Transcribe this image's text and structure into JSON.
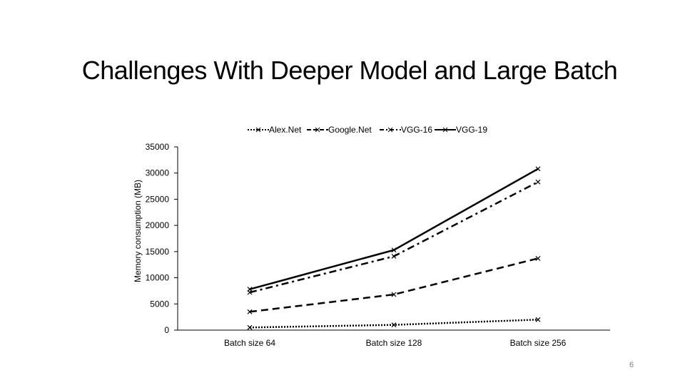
{
  "slide": {
    "title": "Challenges With Deeper Model and Large Batch",
    "page_number": "6"
  },
  "chart_data": {
    "type": "line",
    "title": "",
    "xlabel": "",
    "ylabel": "Memory consumption (MB)",
    "categories": [
      "Batch size 64",
      "Batch size 128",
      "Batch size 256"
    ],
    "ylim": [
      0,
      35000
    ],
    "yticks": [
      "0",
      "5000",
      "10000",
      "15000",
      "20000",
      "25000",
      "30000",
      "35000"
    ],
    "legend_position": "top",
    "grid": false,
    "series": [
      {
        "name": "Alex.Net",
        "values": [
          500,
          1000,
          2000
        ],
        "style": "dotted",
        "color": "#000000"
      },
      {
        "name": "Google.Net",
        "values": [
          3500,
          6800,
          13700
        ],
        "style": "dashed",
        "color": "#000000"
      },
      {
        "name": "VGG-16",
        "values": [
          7200,
          14100,
          28300
        ],
        "style": "dashdot",
        "color": "#000000"
      },
      {
        "name": "VGG-19",
        "values": [
          7800,
          15300,
          30800
        ],
        "style": "solid",
        "color": "#000000"
      }
    ]
  }
}
